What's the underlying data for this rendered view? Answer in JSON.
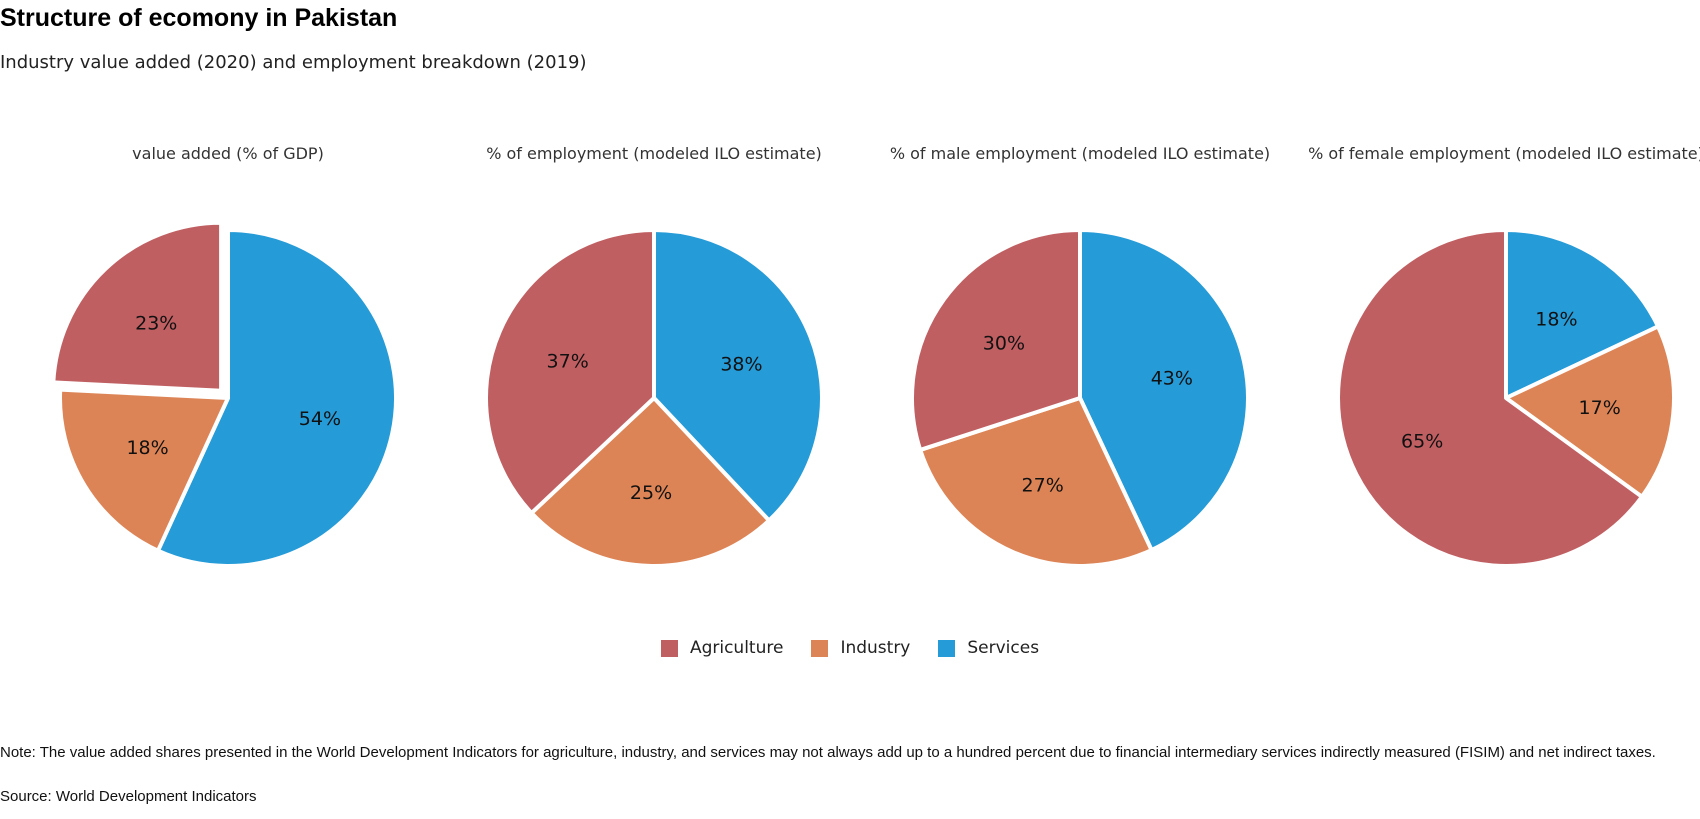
{
  "header": {
    "title": "Structure of ecomony in Pakistan",
    "subtitle": "Industry value added (2020) and employment breakdown (2019)"
  },
  "colors": {
    "Agriculture": "#c05f62",
    "Industry": "#dd8456",
    "Services": "#259bd8"
  },
  "chart_data": [
    {
      "type": "pie",
      "title": "value added (% of GDP)",
      "categories": [
        "Agriculture",
        "Industry",
        "Services"
      ],
      "values": [
        23,
        18,
        54
      ],
      "labels": [
        "23%",
        "18%",
        "54%"
      ]
    },
    {
      "type": "pie",
      "title": "% of employment (modeled ILO estimate)",
      "categories": [
        "Agriculture",
        "Industry",
        "Services"
      ],
      "values": [
        37,
        25,
        38
      ],
      "labels": [
        "37%",
        "25%",
        "38%"
      ]
    },
    {
      "type": "pie",
      "title": "% of male employment (modeled ILO estimate)",
      "categories": [
        "Agriculture",
        "Industry",
        "Services"
      ],
      "values": [
        30,
        27,
        43
      ],
      "labels": [
        "30%",
        "27%",
        "43%"
      ]
    },
    {
      "type": "pie",
      "title": "% of female employment (modeled ILO estimate)",
      "categories": [
        "Agriculture",
        "Industry",
        "Services"
      ],
      "values": [
        65,
        17,
        18
      ],
      "labels": [
        "65%",
        "17%",
        "18%"
      ]
    }
  ],
  "legend": {
    "placement": "bottom-center",
    "items": [
      "Agriculture",
      "Industry",
      "Services"
    ]
  },
  "footer": {
    "note": "Note: The value added shares presented in the World Development Indicators for agriculture, industry, and services may not always add up to a hundred percent due to financial intermediary services indirectly measured (FISIM) and net indirect taxes.",
    "source": "Source: World Development Indicators"
  }
}
